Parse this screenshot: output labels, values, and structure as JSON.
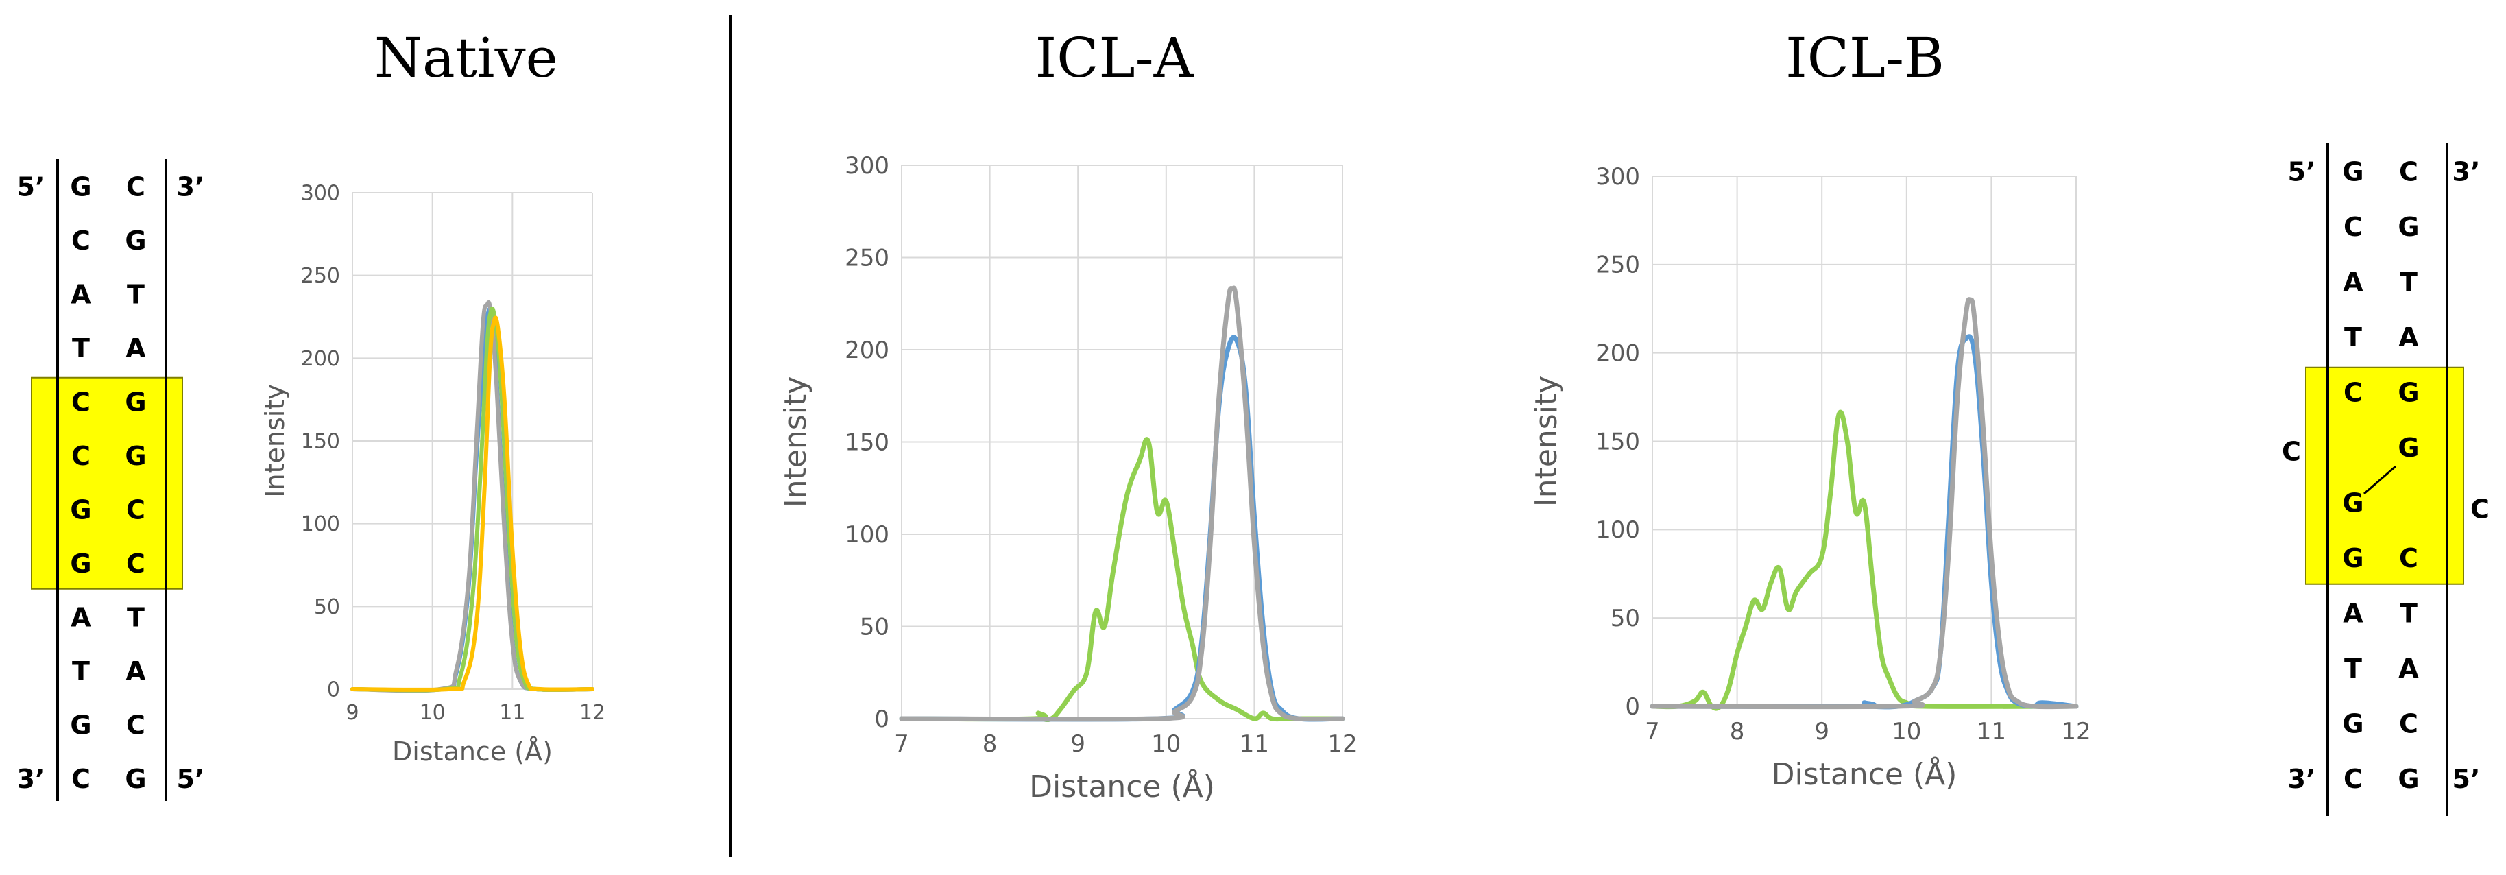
{
  "titles": {
    "native": "Native",
    "icl_a": "ICL-A",
    "icl_b": "ICL-B"
  },
  "colors": {
    "blue": "#5b9bd5",
    "gray": "#a5a5a5",
    "green": "#92d050",
    "orange": "#ffc000",
    "highlight": "#ffff00",
    "grid": "#d9d9d9",
    "axis_text": "#595959"
  },
  "dna_left": {
    "top_left_label": "5’",
    "top_right_label": "3’",
    "bottom_left_label": "3’",
    "bottom_right_label": "5’",
    "left_strand": [
      "G",
      "C",
      "A",
      "T",
      "C",
      "C",
      "G",
      "G",
      "A",
      "T",
      "G",
      "C"
    ],
    "right_strand": [
      "C",
      "G",
      "T",
      "A",
      "G",
      "G",
      "C",
      "C",
      "T",
      "A",
      "C",
      "G"
    ],
    "highlight_rows": [
      4,
      7
    ]
  },
  "dna_right": {
    "top_left_label": "5’",
    "top_right_label": "3’",
    "bottom_left_label": "3’",
    "bottom_right_label": "5’",
    "left_strand": [
      "G",
      "C",
      "A",
      "T",
      "C",
      "",
      "G",
      "G",
      "A",
      "T",
      "G",
      "C"
    ],
    "right_strand": [
      "C",
      "G",
      "T",
      "A",
      "G",
      "G",
      "",
      "C",
      "T",
      "A",
      "C",
      "G"
    ],
    "flipped_left": "C",
    "flipped_right": "C",
    "highlight_rows": [
      4,
      7
    ]
  },
  "chart_data": [
    {
      "id": "native",
      "type": "line",
      "title": "Native",
      "xlabel": "Distance (Å)",
      "ylabel": "Intensity",
      "xlim": [
        9,
        12
      ],
      "ylim": [
        0,
        300
      ],
      "xticks": [
        9,
        10,
        11,
        12
      ],
      "yticks": [
        0,
        50,
        100,
        150,
        200,
        250,
        300
      ],
      "grid": true,
      "series": [
        {
          "color": "#5b9bd5",
          "x": [
            9.0,
            10.1,
            10.3,
            10.45,
            10.55,
            10.65,
            10.7,
            10.75,
            10.8,
            10.9,
            11.0,
            11.1,
            11.3,
            12.0
          ],
          "y": [
            0,
            0,
            10,
            60,
            140,
            210,
            228,
            225,
            190,
            100,
            30,
            5,
            0,
            0
          ]
        },
        {
          "color": "#a5a5a5",
          "x": [
            9.0,
            10.1,
            10.3,
            10.45,
            10.55,
            10.63,
            10.68,
            10.73,
            10.8,
            10.9,
            11.0,
            11.1,
            11.3,
            12.0
          ],
          "y": [
            0,
            0,
            12,
            65,
            150,
            220,
            232,
            228,
            185,
            95,
            28,
            5,
            0,
            0
          ]
        },
        {
          "color": "#92d050",
          "x": [
            9.0,
            10.15,
            10.35,
            10.5,
            10.6,
            10.68,
            10.73,
            10.78,
            10.85,
            10.95,
            11.05,
            11.15,
            11.3,
            12.0
          ],
          "y": [
            0,
            0,
            8,
            55,
            130,
            205,
            228,
            224,
            190,
            100,
            30,
            5,
            0,
            0
          ]
        },
        {
          "color": "#ffc000",
          "x": [
            9.0,
            10.2,
            10.4,
            10.55,
            10.65,
            10.72,
            10.77,
            10.82,
            10.9,
            11.0,
            11.1,
            11.2,
            11.35,
            12.0
          ],
          "y": [
            0,
            0,
            5,
            40,
            120,
            200,
            222,
            218,
            175,
            85,
            25,
            3,
            0,
            0
          ]
        }
      ]
    },
    {
      "id": "icl_a",
      "type": "line",
      "title": "ICL-A",
      "xlabel": "Distance (Å)",
      "ylabel": "Intensity",
      "xlim": [
        7,
        12
      ],
      "ylim": [
        0,
        300
      ],
      "xticks": [
        7,
        8,
        9,
        10,
        11,
        12
      ],
      "yticks": [
        0,
        50,
        100,
        150,
        200,
        250,
        300
      ],
      "grid": true,
      "series": [
        {
          "color": "#92d050",
          "x": [
            7.0,
            8.5,
            8.55,
            8.6,
            8.7,
            8.8,
            8.95,
            9.1,
            9.2,
            9.3,
            9.4,
            9.55,
            9.7,
            9.8,
            9.9,
            10.0,
            10.1,
            10.2,
            10.3,
            10.4,
            10.6,
            10.8,
            11.0,
            11.1,
            11.2,
            11.4,
            11.8,
            12.0
          ],
          "y": [
            0,
            0,
            3,
            0,
            0,
            5,
            15,
            25,
            58,
            50,
            80,
            120,
            140,
            150,
            112,
            118,
            90,
            60,
            40,
            20,
            10,
            5,
            0,
            3,
            0,
            0,
            0,
            0
          ]
        },
        {
          "color": "#5b9bd5",
          "x": [
            7.0,
            9.9,
            10.1,
            10.3,
            10.4,
            10.5,
            10.6,
            10.7,
            10.8,
            10.9,
            11.0,
            11.1,
            11.2,
            11.3,
            11.5,
            12.0
          ],
          "y": [
            0,
            0,
            5,
            15,
            40,
            100,
            170,
            200,
            205,
            180,
            110,
            50,
            15,
            5,
            0,
            0
          ]
        },
        {
          "color": "#a5a5a5",
          "x": [
            7.0,
            9.9,
            10.1,
            10.3,
            10.4,
            10.5,
            10.6,
            10.7,
            10.75,
            10.8,
            10.9,
            11.0,
            11.1,
            11.2,
            11.3,
            11.5,
            12.0
          ],
          "y": [
            0,
            0,
            4,
            12,
            35,
            95,
            175,
            225,
            233,
            225,
            170,
            95,
            40,
            12,
            3,
            0,
            0
          ]
        }
      ]
    },
    {
      "id": "icl_b",
      "type": "line",
      "title": "ICL-B",
      "xlabel": "Distance (Å)",
      "ylabel": "Intensity",
      "xlim": [
        7,
        12
      ],
      "ylim": [
        0,
        300
      ],
      "xticks": [
        7,
        8,
        9,
        10,
        11,
        12
      ],
      "yticks": [
        0,
        50,
        100,
        150,
        200,
        250,
        300
      ],
      "grid": true,
      "series": [
        {
          "color": "#92d050",
          "x": [
            7.0,
            7.3,
            7.5,
            7.6,
            7.7,
            7.8,
            7.9,
            8.0,
            8.1,
            8.2,
            8.3,
            8.4,
            8.5,
            8.6,
            8.7,
            8.85,
            9.0,
            9.1,
            9.2,
            9.3,
            9.4,
            9.5,
            9.6,
            9.7,
            9.8,
            9.9,
            10.0,
            10.2,
            12.0
          ],
          "y": [
            0,
            0,
            3,
            8,
            0,
            0,
            10,
            30,
            45,
            60,
            55,
            70,
            78,
            55,
            65,
            75,
            85,
            120,
            165,
            150,
            110,
            115,
            70,
            30,
            15,
            5,
            2,
            0,
            0
          ]
        },
        {
          "color": "#5b9bd5",
          "x": [
            7.0,
            9.4,
            9.5,
            9.6,
            9.9,
            10.1,
            10.3,
            10.4,
            10.5,
            10.6,
            10.7,
            10.8,
            10.9,
            11.0,
            11.1,
            11.2,
            11.3,
            11.5,
            11.6,
            12.0
          ],
          "y": [
            0,
            0,
            2,
            0,
            0,
            3,
            10,
            30,
            110,
            190,
            208,
            200,
            145,
            70,
            25,
            8,
            2,
            0,
            2,
            0
          ]
        },
        {
          "color": "#a5a5a5",
          "x": [
            7.0,
            9.9,
            10.1,
            10.3,
            10.4,
            10.5,
            10.6,
            10.7,
            10.75,
            10.8,
            10.9,
            11.0,
            11.1,
            11.2,
            11.3,
            11.5,
            12.0
          ],
          "y": [
            0,
            0,
            3,
            10,
            30,
            90,
            175,
            222,
            230,
            220,
            160,
            85,
            35,
            10,
            3,
            0,
            0
          ]
        }
      ]
    }
  ]
}
